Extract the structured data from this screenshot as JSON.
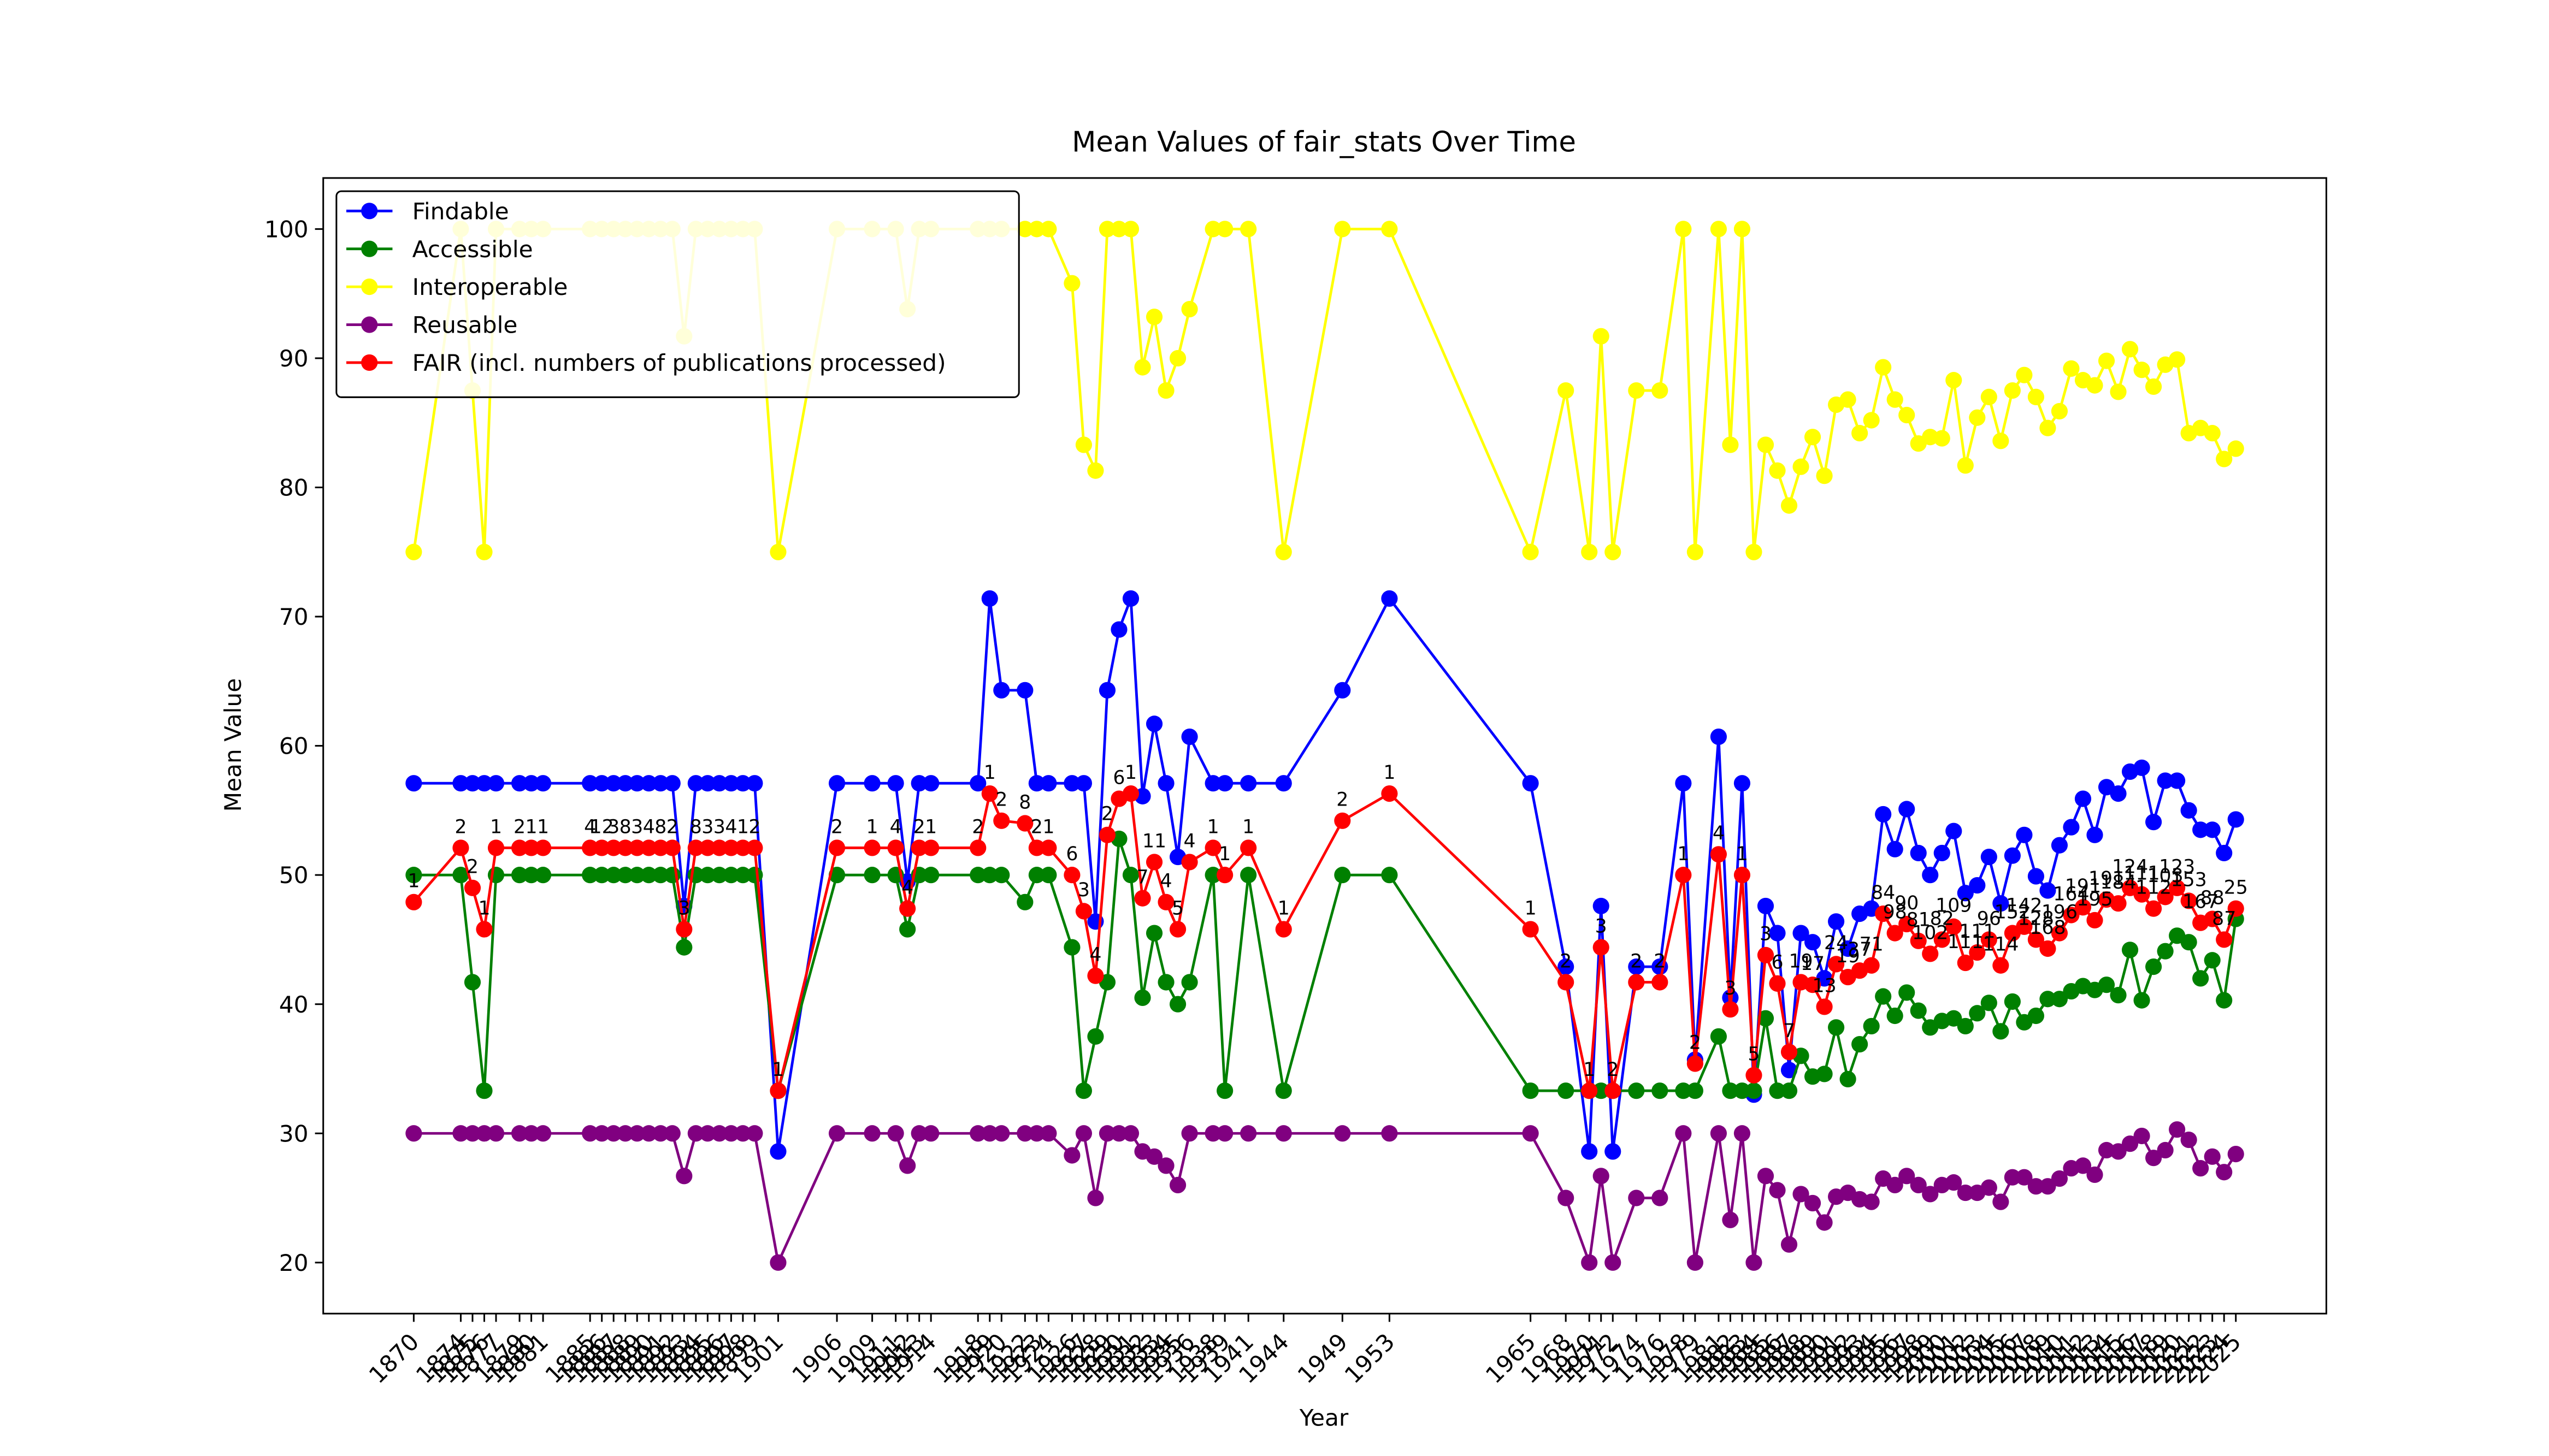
{
  "chart_data": {
    "type": "line",
    "title": "Mean Values of fair_stats Over Time",
    "xlabel": "Year",
    "ylabel": "Mean Value",
    "x": [
      1870,
      1874,
      1875,
      1876,
      1877,
      1879,
      1880,
      1881,
      1885,
      1886,
      1887,
      1888,
      1889,
      1890,
      1891,
      1892,
      1893,
      1894,
      1895,
      1896,
      1897,
      1898,
      1899,
      1901,
      1906,
      1909,
      1911,
      1912,
      1913,
      1914,
      1918,
      1919,
      1920,
      1922,
      1923,
      1924,
      1926,
      1927,
      1928,
      1929,
      1930,
      1931,
      1932,
      1933,
      1934,
      1935,
      1936,
      1938,
      1939,
      1941,
      1944,
      1949,
      1953,
      1965,
      1968,
      1970,
      1971,
      1972,
      1974,
      1976,
      1978,
      1979,
      1981,
      1982,
      1983,
      1984,
      1985,
      1986,
      1987,
      1988,
      1989,
      1990,
      1991,
      1992,
      1993,
      1994,
      1995,
      1996,
      1997,
      1998,
      1999,
      2000,
      2001,
      2002,
      2003,
      2004,
      2005,
      2006,
      2007,
      2008,
      2009,
      2010,
      2011,
      2012,
      2013,
      2014,
      2015,
      2016,
      2017,
      2018,
      2019,
      2020,
      2021,
      2022,
      2023,
      2024,
      2025
    ],
    "xticks": [
      1870,
      1874,
      1875,
      1876,
      1877,
      1879,
      1880,
      1881,
      1885,
      1886,
      1887,
      1888,
      1889,
      1890,
      1891,
      1892,
      1893,
      1894,
      1895,
      1896,
      1897,
      1898,
      1899,
      1901,
      1906,
      1909,
      1911,
      1912,
      1913,
      1914,
      1918,
      1919,
      1920,
      1922,
      1923,
      1924,
      1926,
      1927,
      1928,
      1929,
      1930,
      1931,
      1932,
      1933,
      1934,
      1935,
      1936,
      1938,
      1939,
      1941,
      1944,
      1949,
      1953,
      1965,
      1968,
      1970,
      1971,
      1972,
      1974,
      1976,
      1978,
      1979,
      1981,
      1982,
      1983,
      1984,
      1985,
      1986,
      1987,
      1988,
      1989,
      1990,
      1991,
      1992,
      1993,
      1994,
      1995,
      1996,
      1997,
      1998,
      1999,
      2000,
      2001,
      2002,
      2003,
      2004,
      2005,
      2006,
      2007,
      2008,
      2009,
      2010,
      2011,
      2012,
      2013,
      2014,
      2015,
      2016,
      2017,
      2018,
      2019,
      2020,
      2021,
      2022,
      2023,
      2024,
      2025
    ],
    "xlim": [
      1862.3,
      2032.7
    ],
    "ylim": [
      16.05,
      103.95
    ],
    "yticks": [
      20,
      30,
      40,
      50,
      60,
      70,
      80,
      90,
      100
    ],
    "legend": "upper left",
    "series": [
      {
        "name": "Findable",
        "color": "#0000ff",
        "values": [
          57.1,
          57.1,
          57.1,
          57.1,
          57.1,
          57.1,
          57.1,
          57.1,
          57.1,
          57.1,
          57.1,
          57.1,
          57.1,
          57.1,
          57.1,
          57.1,
          47.6,
          57.1,
          57.1,
          57.1,
          57.1,
          57.1,
          57.1,
          28.6,
          57.1,
          57.1,
          57.1,
          49.5,
          57.1,
          57.1,
          57.1,
          71.4,
          64.3,
          64.3,
          57.1,
          57.1,
          57.1,
          57.1,
          46.4,
          64.3,
          69,
          71.4,
          56.1,
          61.7,
          57.1,
          51.4,
          60.7,
          57.1,
          57.1,
          57.1,
          57.1,
          64.3,
          71.4,
          57.1,
          42.9,
          28.6,
          47.6,
          28.6,
          42.9,
          42.9,
          57.1,
          35.7,
          60.7,
          40.5,
          57.1,
          33,
          47.6,
          45.5,
          34.9,
          45.5,
          44.8,
          42,
          46.4,
          44.3,
          47,
          47.4,
          54.7,
          52,
          55.1,
          51.7,
          50,
          51.7,
          53.4,
          48.6,
          49.2,
          51.4,
          47.8,
          51.5,
          53.1,
          49.9,
          48.8,
          52.3,
          53.7,
          55.9,
          53.1,
          56.8,
          56.3,
          58,
          58.3,
          54.1,
          57.3,
          57.3,
          55,
          53.5,
          53.5,
          51.7,
          54.3
        ]
      },
      {
        "name": "Accessible",
        "color": "#008000",
        "values": [
          50,
          50,
          41.7,
          33.3,
          50,
          50,
          50,
          50,
          50,
          50,
          50,
          50,
          50,
          50,
          50,
          50,
          44.4,
          50,
          50,
          50,
          50,
          50,
          50,
          33.3,
          50,
          50,
          50,
          45.8,
          50,
          50,
          50,
          50,
          50,
          47.9,
          50,
          50,
          44.4,
          33.3,
          37.5,
          41.7,
          52.8,
          50,
          40.5,
          45.5,
          41.7,
          40,
          41.7,
          50,
          33.3,
          50,
          33.3,
          50,
          50,
          33.3,
          33.3,
          33.3,
          33.3,
          33.3,
          33.3,
          33.3,
          33.3,
          33.3,
          37.5,
          33.3,
          33.3,
          33.3,
          38.9,
          33.3,
          33.3,
          36,
          34.4,
          34.6,
          38.2,
          34.2,
          36.9,
          38.3,
          40.6,
          39.1,
          40.9,
          39.5,
          38.2,
          38.7,
          38.9,
          38.3,
          39.3,
          40.1,
          37.9,
          40.2,
          38.6,
          39.1,
          40.4,
          40.4,
          41,
          41.4,
          41.1,
          41.5,
          40.7,
          44.2,
          40.3,
          42.9,
          44.1,
          45.3,
          44.8,
          42,
          43.4,
          40.3,
          46.6
        ]
      },
      {
        "name": "Interoperable",
        "color": "#ffff00",
        "values": [
          75,
          100,
          87.5,
          75,
          100,
          100,
          100,
          100,
          100,
          100,
          100,
          100,
          100,
          100,
          100,
          100,
          91.7,
          100,
          100,
          100,
          100,
          100,
          100,
          75,
          100,
          100,
          100,
          93.8,
          100,
          100,
          100,
          100,
          100,
          100,
          100,
          100,
          95.8,
          83.3,
          81.3,
          100,
          100,
          100,
          89.3,
          93.2,
          87.5,
          90,
          93.8,
          100,
          100,
          100,
          75,
          100,
          100,
          75,
          87.5,
          75,
          91.7,
          75,
          87.5,
          87.5,
          100,
          75,
          100,
          83.3,
          100,
          75,
          83.3,
          81.3,
          78.6,
          81.6,
          83.9,
          80.9,
          86.4,
          86.8,
          84.2,
          85.2,
          89.3,
          86.8,
          85.6,
          83.4,
          83.9,
          83.8,
          88.3,
          81.7,
          85.4,
          87,
          83.6,
          87.5,
          88.7,
          87,
          84.6,
          85.9,
          89.2,
          88.3,
          87.9,
          89.8,
          87.4,
          90.7,
          89.1,
          87.8,
          89.5,
          89.9,
          84.2,
          84.6,
          84.2,
          82.2,
          83
        ]
      },
      {
        "name": "Reusable",
        "color": "#800080",
        "values": [
          30,
          30,
          30,
          30,
          30,
          30,
          30,
          30,
          30,
          30,
          30,
          30,
          30,
          30,
          30,
          30,
          26.7,
          30,
          30,
          30,
          30,
          30,
          30,
          20,
          30,
          30,
          30,
          27.5,
          30,
          30,
          30,
          30,
          30,
          30,
          30,
          30,
          28.3,
          30,
          25,
          30,
          30,
          30,
          28.6,
          28.2,
          27.5,
          26,
          30,
          30,
          30,
          30,
          30,
          30,
          30,
          30,
          25,
          20,
          26.7,
          20,
          25,
          25,
          30,
          20,
          30,
          23.3,
          30,
          20,
          26.7,
          25.6,
          21.4,
          25.3,
          24.6,
          23.1,
          25.1,
          25.4,
          24.9,
          24.7,
          26.5,
          26,
          26.7,
          26,
          25.3,
          26,
          26.2,
          25.4,
          25.4,
          25.8,
          24.7,
          26.6,
          26.6,
          25.9,
          25.9,
          26.5,
          27.3,
          27.5,
          26.8,
          28.7,
          28.6,
          29.2,
          29.8,
          28.1,
          28.7,
          30.3,
          29.5,
          27.3,
          28.2,
          27,
          28.4
        ]
      },
      {
        "name": "FAIR (incl. numbers of publications processed)",
        "color": "#ff0000",
        "values": [
          47.9,
          52.1,
          49,
          45.8,
          52.1,
          52.1,
          52.1,
          52.1,
          52.1,
          52.1,
          52.1,
          52.1,
          52.1,
          52.1,
          52.1,
          52.1,
          45.8,
          52.1,
          52.1,
          52.1,
          52.1,
          52.1,
          52.1,
          33.3,
          52.1,
          52.1,
          52.1,
          47.4,
          52.1,
          52.1,
          52.1,
          56.3,
          54.2,
          54,
          52.1,
          52.1,
          50,
          47.2,
          42.2,
          53.1,
          55.9,
          56.3,
          48.2,
          51,
          47.9,
          45.8,
          51,
          52.1,
          50,
          52.1,
          45.8,
          54.2,
          56.3,
          45.8,
          41.7,
          33.3,
          44.4,
          33.3,
          41.7,
          41.7,
          50,
          35.4,
          51.6,
          39.6,
          50,
          34.5,
          43.8,
          41.6,
          36.3,
          41.7,
          41.5,
          39.8,
          43.1,
          42.1,
          42.6,
          43,
          47,
          45.5,
          46.2,
          44.9,
          43.9,
          45,
          46,
          43.2,
          44,
          45,
          43,
          45.5,
          46,
          45,
          44.3,
          45.5,
          46.9,
          47.5,
          46.5,
          48.1,
          47.8,
          49,
          48.5,
          47.4,
          48.3,
          49,
          48,
          46.3,
          46.6,
          45,
          47.4
        ],
        "point_labels": [
          1,
          2,
          2,
          1,
          1,
          2,
          1,
          1,
          4,
          12,
          3,
          8,
          3,
          4,
          8,
          2,
          3,
          8,
          3,
          3,
          4,
          1,
          2,
          1,
          2,
          1,
          4,
          4,
          2,
          1,
          2,
          1,
          2,
          8,
          2,
          1,
          6,
          3,
          4,
          2,
          6,
          1,
          7,
          11,
          4,
          5,
          4,
          1,
          1,
          1,
          1,
          2,
          1,
          1,
          2,
          1,
          3,
          2,
          2,
          2,
          1,
          2,
          4,
          3,
          1,
          5,
          3,
          6,
          7,
          19,
          17,
          13,
          24,
          19,
          37,
          71,
          84,
          98,
          90,
          81,
          102,
          82,
          109,
          111,
          111,
          96,
          114,
          152,
          142,
          128,
          168,
          196,
          164,
          191,
          195,
          191,
          184,
          124,
          111,
          112,
          103,
          123,
          153,
          167,
          88,
          87,
          25
        ]
      }
    ]
  }
}
